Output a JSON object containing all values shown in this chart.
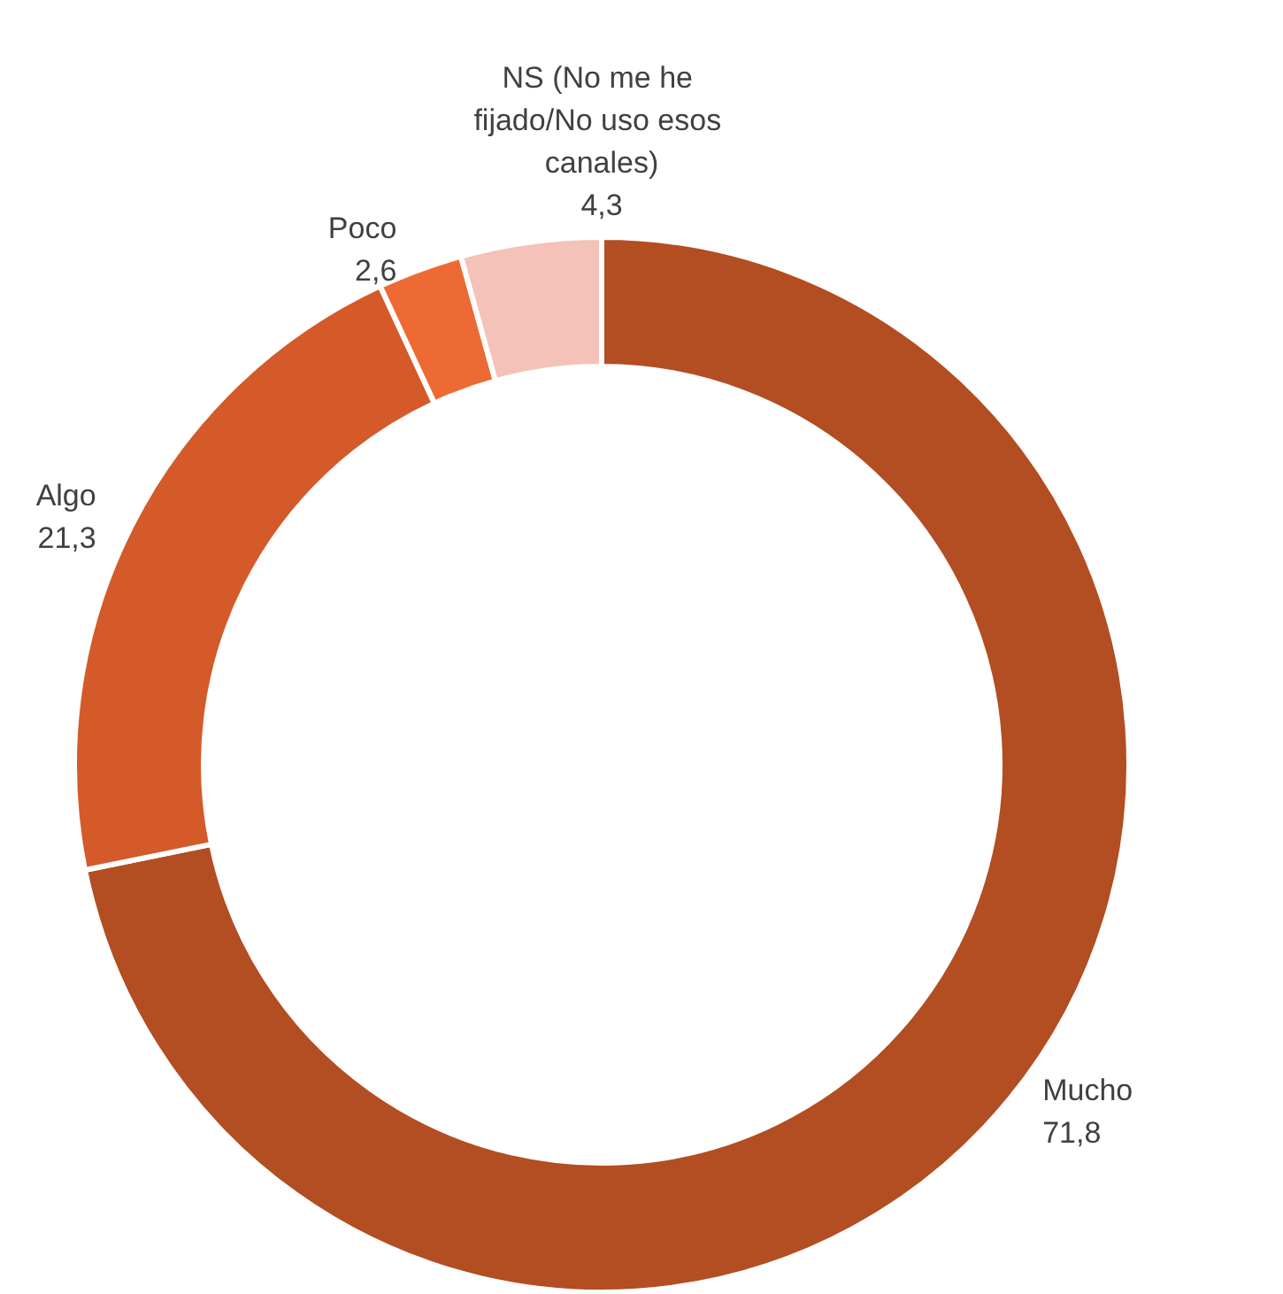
{
  "chart_data": {
    "type": "donut",
    "categories": [
      "Mucho",
      "Algo",
      "Poco",
      "NS (No me he fijado/No uso esos canales)"
    ],
    "values": [
      71.8,
      21.3,
      2.6,
      4.3
    ],
    "value_labels": [
      "71,8",
      "21,3",
      "2,6",
      "4,3"
    ],
    "colors": [
      "#b34d22",
      "#d45a2a",
      "#ee6a34",
      "#f4c2b8"
    ],
    "legend": false
  }
}
